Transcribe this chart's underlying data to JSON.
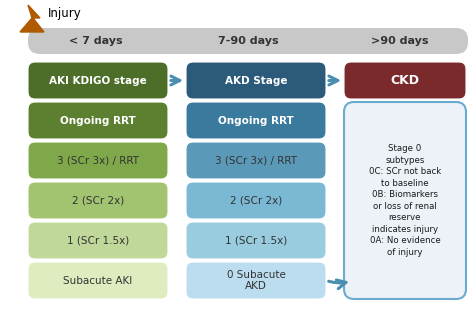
{
  "title_text": "Injury",
  "timeline_label": "< 7 days",
  "timeline_label2": "7-90 days",
  "timeline_label3": ">90 days",
  "col1_header": "AKI KDIGO stage",
  "col1_header_color": "#4d6e28",
  "col1_rows": [
    "Ongoing RRT",
    "3 (SCr 3x) / RRT",
    "2 (SCr 2x)",
    "1 (SCr 1.5x)",
    "Subacute AKI"
  ],
  "col1_row_colors": [
    "#5d8030",
    "#7ea84a",
    "#a2c470",
    "#c0d99a",
    "#deecc0"
  ],
  "col1_text_colors": [
    "white",
    "#333333",
    "#333333",
    "#333333",
    "#333333"
  ],
  "col2_header": "AKD Stage",
  "col2_header_color": "#2c5a7a",
  "col2_rows": [
    "Ongoing RRT",
    "3 (SCr 3x) / RRT",
    "2 (SCr 2x)",
    "1 (SCr 1.5x)",
    "0 Subacute\nAKD"
  ],
  "col2_row_colors": [
    "#3a7a9c",
    "#5a9ab8",
    "#7ab8d4",
    "#9acce0",
    "#bcddf0"
  ],
  "col2_text_colors": [
    "white",
    "#333333",
    "#333333",
    "#333333",
    "#333333"
  ],
  "col3_header": "CKD",
  "col3_header_color": "#7a2a2a",
  "stage0_text": "Stage 0\nsubtypes\n0C: SCr not back\nto baseline\n0B: Biomarkers\nor loss of renal\nreserve\nindicates injury\n0A: No evidence\nof injury",
  "stage0_bg": "#edf2f8",
  "stage0_border": "#6aaccf",
  "timeline_color": "#c8c8c8",
  "arrow_color": "#4a8fb0",
  "lightning_color": "#b05a00",
  "bg_color": "#ffffff"
}
